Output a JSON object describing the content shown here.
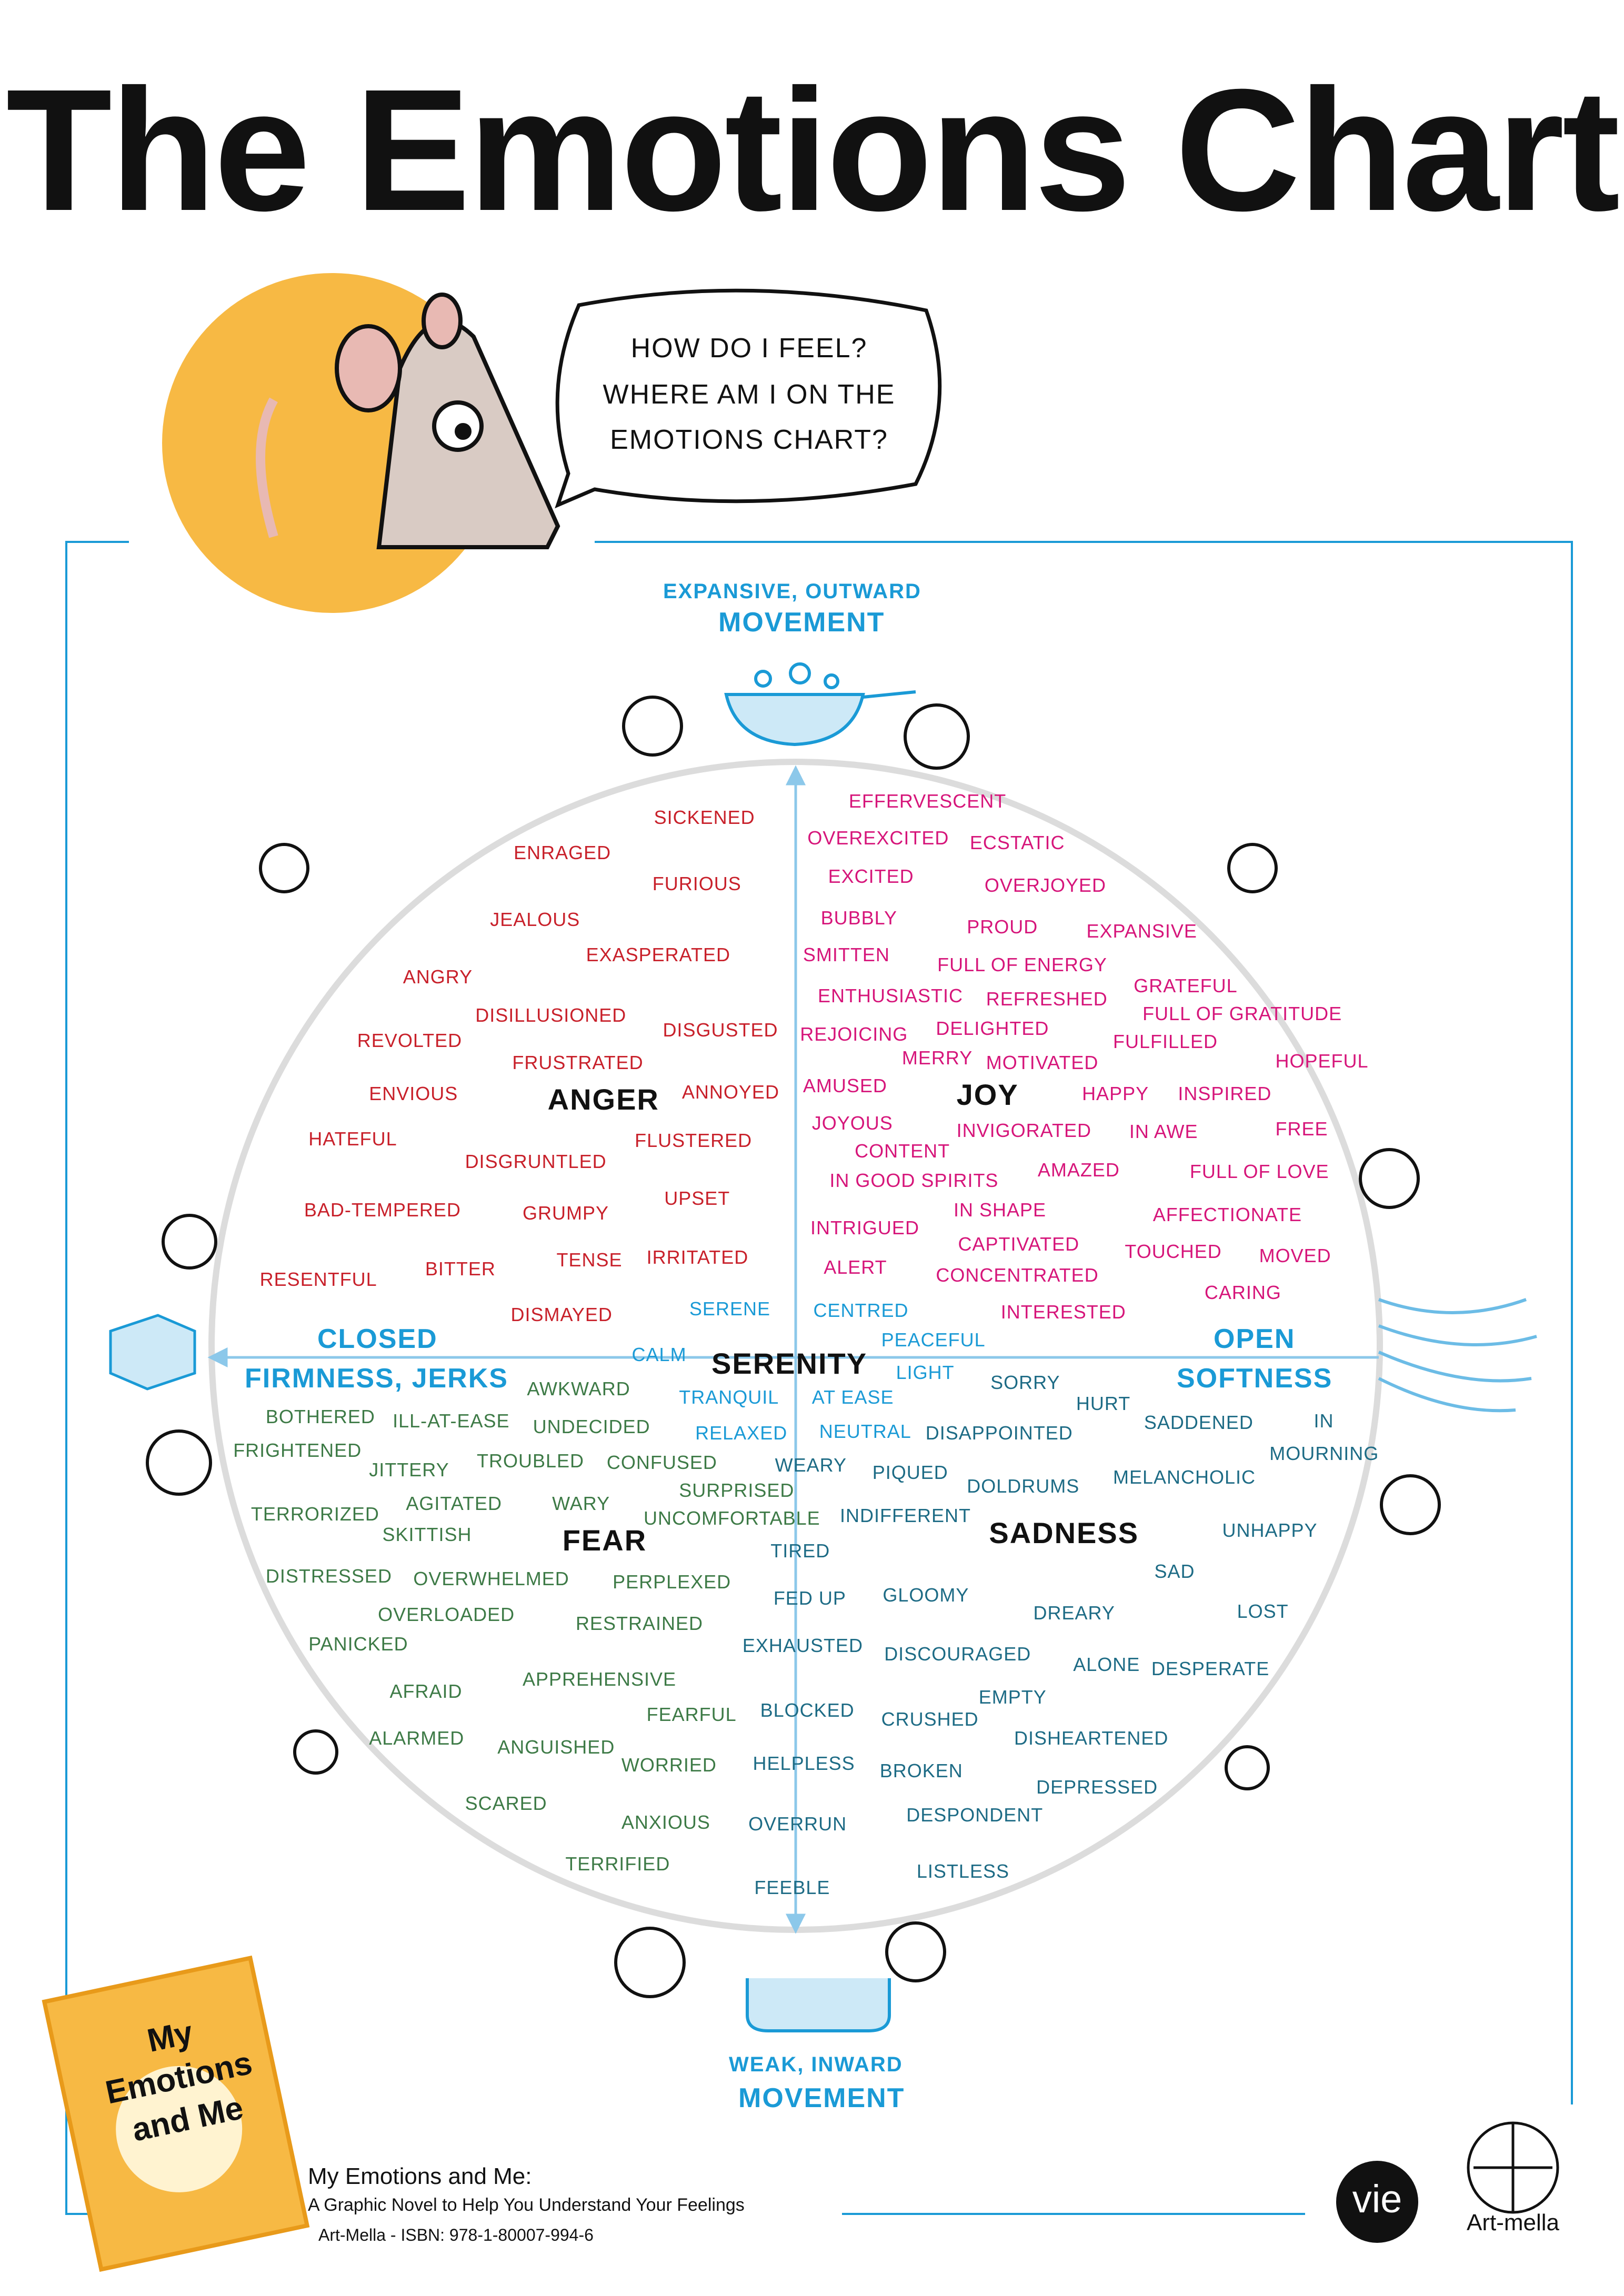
{
  "title": "The Emotions Chart",
  "bubble": {
    "lines": [
      "HOW DO I FEEL?",
      "WHERE AM I ON THE",
      "EMOTIONS CHART?"
    ]
  },
  "axes": {
    "top": {
      "line1": "EXPANSIVE, OUTWARD",
      "line2": "MOVEMENT"
    },
    "bottom": {
      "line1": "WEAK, INWARD",
      "line2": "MOVEMENT"
    },
    "left": {
      "line1": "CLOSED",
      "line2": "FIRMNESS, JERKS"
    },
    "right": {
      "line1": "OPEN",
      "line2": "SOFTNESS"
    }
  },
  "quadrants": [
    {
      "key": "anger",
      "label": "ANGER",
      "color": "#c8202a",
      "words": [
        "SICKENED",
        "ENRAGED",
        "FURIOUS",
        "JEALOUS",
        "EXASPERATED",
        "ANGRY",
        "DISILLUSIONED",
        "DISGUSTED",
        "REVOLTED",
        "FRUSTRATED",
        "ENVIOUS",
        "ANNOYED",
        "HATEFUL",
        "FLUSTERED",
        "DISGRUNTLED",
        "UPSET",
        "BAD-TEMPERED",
        "GRUMPY",
        "TENSE",
        "IRRITATED",
        "RESENTFUL",
        "BITTER",
        "DISMAYED"
      ]
    },
    {
      "key": "joy",
      "label": "JOY",
      "color": "#d6157a",
      "words": [
        "EFFERVESCENT",
        "OVEREXCITED",
        "ECSTATIC",
        "EXCITED",
        "OVERJOYED",
        "BUBBLY",
        "PROUD",
        "EXPANSIVE",
        "SMITTEN",
        "FULL OF ENERGY",
        "ENTHUSIASTIC",
        "REFRESHED",
        "GRATEFUL",
        "FULL OF GRATITUDE",
        "REJOICING",
        "DELIGHTED",
        "FULFILLED",
        "MERRY",
        "MOTIVATED",
        "HOPEFUL",
        "AMUSED",
        "HAPPY",
        "INSPIRED",
        "JOYOUS",
        "INVIGORATED",
        "IN AWE",
        "FREE",
        "CONTENT",
        "AMAZED",
        "FULL OF LOVE",
        "IN GOOD SPIRITS",
        "IN SHAPE",
        "AFFECTIONATE",
        "INTRIGUED",
        "CAPTIVATED",
        "TOUCHED",
        "MOVED",
        "ALERT",
        "CONCENTRATED",
        "CARING",
        "INTERESTED"
      ]
    },
    {
      "key": "serenity",
      "label": "SERENITY",
      "color": "#1a9ad6",
      "words": [
        "SERENE",
        "CENTRED",
        "PEACEFUL",
        "CALM",
        "LIGHT",
        "TRANQUIL",
        "AT EASE",
        "RELAXED",
        "NEUTRAL"
      ]
    },
    {
      "key": "sadness",
      "label": "SADNESS",
      "color": "#1d6b85",
      "words": [
        "SORRY",
        "HURT",
        "DISAPPOINTED",
        "SADDENED",
        "IN",
        "MOURNING",
        "WEARY",
        "PIQUED",
        "DOLDRUMS",
        "MELANCHOLIC",
        "INDIFFERENT",
        "UNHAPPY",
        "TIRED",
        "SAD",
        "FED UP",
        "GLOOMY",
        "DREARY",
        "LOST",
        "EXHAUSTED",
        "DISCOURAGED",
        "ALONE",
        "DESPERATE",
        "EMPTY",
        "BLOCKED",
        "CRUSHED",
        "DISHEARTENED",
        "HELPLESS",
        "BROKEN",
        "DEPRESSED",
        "DESPONDENT",
        "OVERRUN",
        "LISTLESS",
        "FEEBLE"
      ]
    },
    {
      "key": "fear",
      "label": "FEAR",
      "color": "#3d7a46",
      "words": [
        "AWKWARD",
        "BOTHERED",
        "ILL-AT-EASE",
        "UNDECIDED",
        "FRIGHTENED",
        "JITTERY",
        "TROUBLED",
        "CONFUSED",
        "SURPRISED",
        "TERRORIZED",
        "AGITATED",
        "WARY",
        "UNCOMFORTABLE",
        "SKITTISH",
        "DISTRESSED",
        "OVERWHELMED",
        "PERPLEXED",
        "OVERLOADED",
        "RESTRAINED",
        "PANICKED",
        "APPREHENSIVE",
        "AFRAID",
        "FEARFUL",
        "ALARMED",
        "ANGUISHED",
        "WORRIED",
        "SCARED",
        "ANXIOUS",
        "TERRIFIED"
      ]
    }
  ],
  "book": {
    "cover_lettering": "My Emotions and Me",
    "title": "My Emotions and Me:",
    "subtitle": "A Graphic Novel to Help You Understand Your Feelings",
    "credit": "Art-Mella - ISBN: 978-1-80007-994-6"
  },
  "logos": {
    "publisher": "vie",
    "artist": "Art-mella"
  },
  "colors": {
    "frame": "#1a9ad6",
    "circle": "#d9d9d9",
    "sun": "#f7b944"
  }
}
